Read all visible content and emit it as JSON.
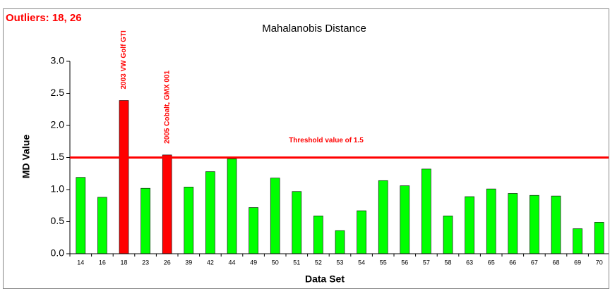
{
  "chart_data": {
    "type": "bar",
    "title": "Mahalanobis Distance",
    "subtitle": "Outliers: 18, 26",
    "x_label": "Data Set",
    "y_label": "MD Value",
    "categories": [
      "14",
      "16",
      "18",
      "23",
      "26",
      "39",
      "42",
      "44",
      "49",
      "50",
      "51",
      "52",
      "53",
      "54",
      "55",
      "56",
      "57",
      "58",
      "63",
      "65",
      "66",
      "67",
      "68",
      "69",
      "70"
    ],
    "values": [
      1.19,
      0.88,
      2.39,
      1.02,
      1.54,
      1.04,
      1.28,
      1.48,
      0.72,
      1.18,
      0.97,
      0.59,
      0.36,
      0.67,
      1.14,
      1.06,
      1.32,
      0.59,
      0.89,
      1.01,
      0.94,
      0.91,
      0.9,
      0.39,
      0.49
    ],
    "colors": [
      "#00ff00",
      "#00ff00",
      "#ff0000",
      "#00ff00",
      "#ff0000",
      "#00ff00",
      "#00ff00",
      "#00ff00",
      "#00ff00",
      "#00ff00",
      "#00ff00",
      "#00ff00",
      "#00ff00",
      "#00ff00",
      "#00ff00",
      "#00ff00",
      "#00ff00",
      "#00ff00",
      "#00ff00",
      "#00ff00",
      "#00ff00",
      "#00ff00",
      "#00ff00",
      "#00ff00",
      "#00ff00"
    ],
    "ylim": [
      0,
      3
    ],
    "yticks": [
      {
        "value": 0,
        "label": "0.0"
      },
      {
        "value": 0.5,
        "label": "0.5"
      },
      {
        "value": 1,
        "label": "1.0"
      },
      {
        "value": 1.5,
        "label": "1.5"
      },
      {
        "value": 2,
        "label": "2.0"
      },
      {
        "value": 2.5,
        "label": "2.5"
      },
      {
        "value": 3,
        "label": "3.0"
      }
    ],
    "threshold": {
      "value": 1.5,
      "label": "Threshold value of 1.5",
      "color": "#ff0000"
    },
    "annotations": [
      {
        "category": "18",
        "text": "2003 VW Golf GTI"
      },
      {
        "category": "26",
        "text": "2005 Cobalt, GMX 001"
      }
    ]
  }
}
